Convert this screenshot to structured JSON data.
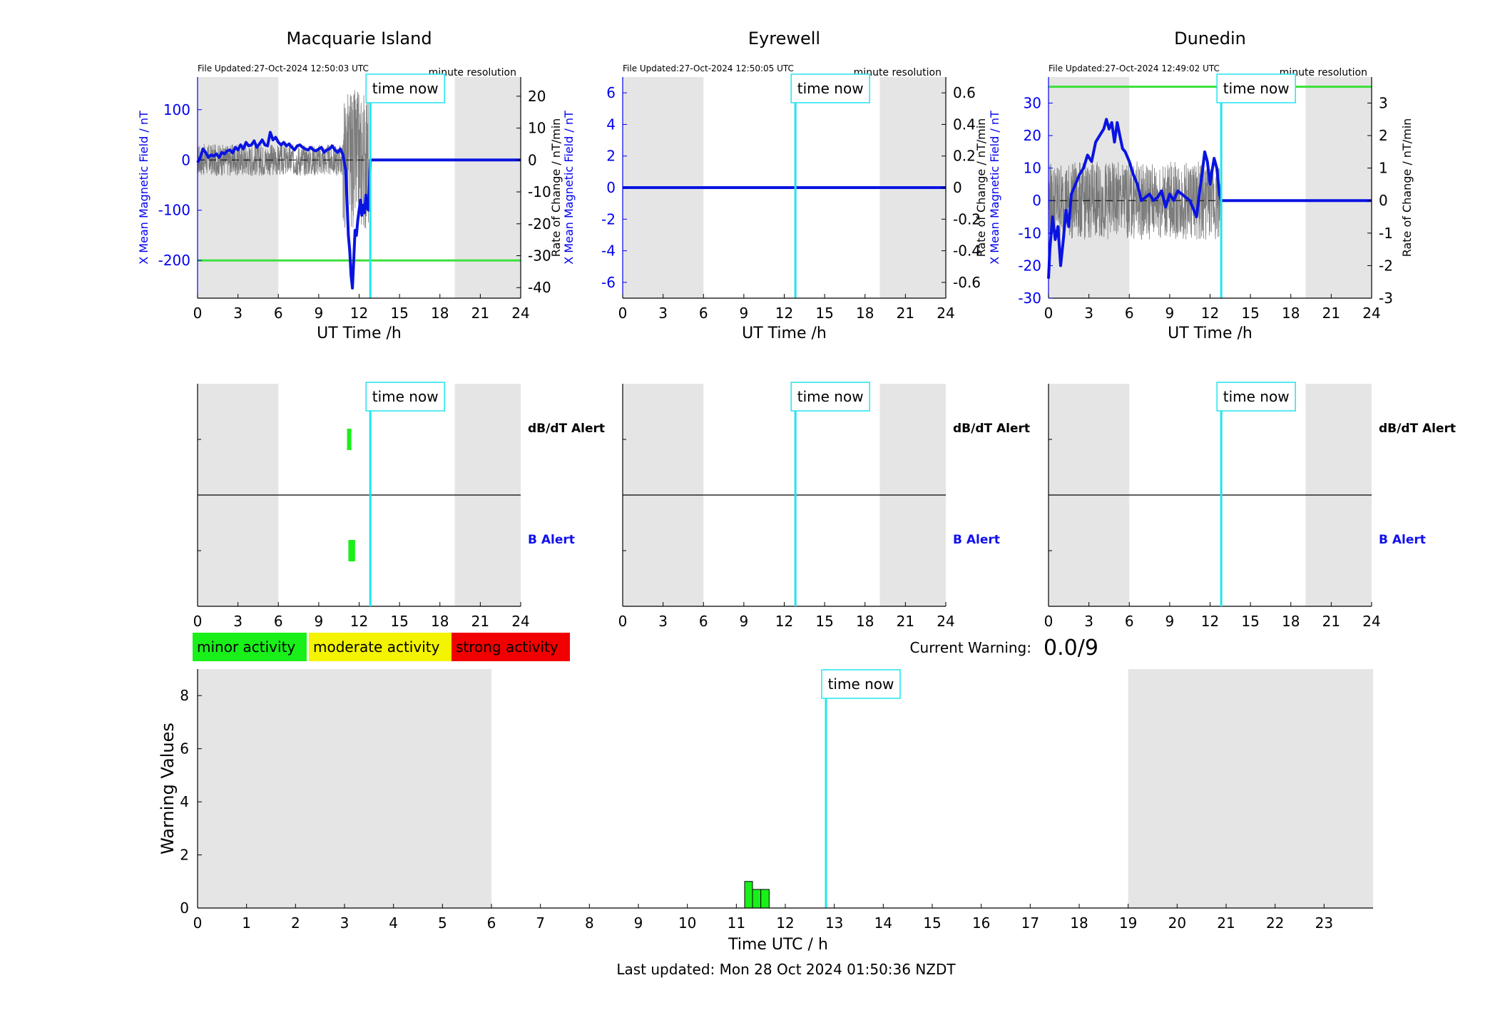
{
  "colors": {
    "shade": "#e5e5e5",
    "field": "#0a14e0",
    "rate": "#666666",
    "now": "#22e4f0",
    "threshold": "#3be03b",
    "minor": "#19f019",
    "moderate": "#f4f400",
    "strong": "#f20000",
    "axis_blue": "#0000ee"
  },
  "labels": {
    "time_now": "time now",
    "resolution": "minute resolution",
    "xlabel_station": "UT Time /h",
    "ylabel_field": "X Mean Magnetic Field / nT",
    "ylabel_rate": "Rate of Change / nT/min",
    "dbdt_alert": "dB/dT Alert",
    "b_alert": "B Alert",
    "current_warning_label": "Current Warning:",
    "current_warning_value": "0.0/9",
    "warning_ylabel": "Warning Values",
    "warning_xlabel": "Time UTC / h",
    "last_updated": "Last updated: Mon 28 Oct 2024 01:50:36 NZDT"
  },
  "legend": [
    {
      "label": "minor activity",
      "color": "#19f019"
    },
    {
      "label": "moderate activity",
      "color": "#f4f400"
    },
    {
      "label": "strong activity",
      "color": "#f20000"
    }
  ],
  "chart_data": [
    {
      "type": "line",
      "title": "Macquarie Island",
      "file_updated": "File Updated:27-Oct-2024 12:50:03 UTC",
      "xlabel": "UT Time /h",
      "ylabel": "X Mean Magnetic Field / nT",
      "y2label": "Rate of Change / nT/min",
      "xlim": [
        0,
        24
      ],
      "xticks": [
        0,
        3,
        6,
        9,
        12,
        15,
        18,
        21,
        24
      ],
      "ylim": [
        -275,
        165
      ],
      "yticks": [
        -200,
        -100,
        0,
        100
      ],
      "y2lim": [
        -43.3,
        26.0
      ],
      "y2ticks": [
        -40,
        -30,
        -20,
        -10,
        0,
        10,
        20
      ],
      "night_shading": [
        [
          0,
          6
        ],
        [
          19.1,
          24
        ]
      ],
      "time_now": 12.83,
      "threshold": -200,
      "field_series": {
        "name": "X Mean Magnetic Field",
        "x": [
          0,
          0.2,
          0.4,
          0.6,
          0.8,
          1.0,
          1.2,
          1.4,
          1.6,
          1.8,
          2.0,
          2.2,
          2.4,
          2.6,
          2.8,
          3.0,
          3.2,
          3.4,
          3.6,
          3.8,
          4.0,
          4.2,
          4.4,
          4.6,
          4.8,
          5.0,
          5.2,
          5.4,
          5.6,
          5.8,
          6.0,
          6.2,
          6.4,
          6.6,
          6.8,
          7.0,
          7.2,
          7.4,
          7.6,
          7.8,
          8.0,
          8.2,
          8.4,
          8.6,
          8.8,
          9.0,
          9.2,
          9.4,
          9.6,
          9.8,
          10.0,
          10.2,
          10.4,
          10.6,
          10.8,
          11.0,
          11.1,
          11.2,
          11.3,
          11.4,
          11.5,
          11.6,
          11.7,
          11.8,
          11.9,
          12.0,
          12.1,
          12.2,
          12.3,
          12.4,
          12.5,
          12.6,
          12.7,
          12.83,
          13,
          14,
          15,
          16,
          17,
          18,
          19,
          20,
          21,
          22,
          23,
          24
        ],
        "values": [
          -5,
          5,
          22,
          15,
          5,
          10,
          8,
          12,
          5,
          15,
          12,
          18,
          20,
          14,
          25,
          20,
          30,
          22,
          35,
          28,
          30,
          38,
          25,
          32,
          40,
          30,
          28,
          55,
          40,
          45,
          35,
          30,
          35,
          28,
          32,
          25,
          20,
          28,
          30,
          25,
          22,
          20,
          25,
          20,
          18,
          22,
          25,
          15,
          20,
          22,
          28,
          20,
          15,
          22,
          10,
          -20,
          -80,
          -150,
          -180,
          -230,
          -255,
          -200,
          -140,
          -150,
          -120,
          -100,
          -80,
          -110,
          -90,
          -105,
          -70,
          -95,
          -100,
          0,
          0,
          0,
          0,
          0,
          0,
          0,
          0,
          0,
          0,
          0,
          0,
          0
        ]
      },
      "rate_series": {
        "name": "Rate of Change",
        "x_start": 0,
        "x_end": 12.7,
        "amplitude": 5,
        "spike_start": 10.8,
        "spike_amplitude": 22
      }
    },
    {
      "type": "line",
      "title": "Eyrewell",
      "file_updated": "File Updated:27-Oct-2024 12:50:05 UTC",
      "xlabel": "UT Time /h",
      "ylabel": "X Mean Magnetic Field / nT",
      "y2label": "Rate of Change / nT/min",
      "xlim": [
        0,
        24
      ],
      "xticks": [
        0,
        3,
        6,
        9,
        12,
        15,
        18,
        21,
        24
      ],
      "ylim": [
        -7,
        7
      ],
      "yticks": [
        -6,
        -4,
        -2,
        0,
        2,
        4,
        6
      ],
      "y2lim": [
        -0.7,
        0.7
      ],
      "y2ticks": [
        -0.6,
        -0.4,
        -0.2,
        0,
        0.2,
        0.4,
        0.6
      ],
      "night_shading": [
        [
          0,
          6
        ],
        [
          19.1,
          24
        ]
      ],
      "time_now": 12.83,
      "field_series": {
        "name": "X Mean Magnetic Field",
        "x": [
          0,
          24
        ],
        "values": [
          0,
          0
        ]
      }
    },
    {
      "type": "line",
      "title": "Dunedin",
      "file_updated": "File Updated:27-Oct-2024 12:49:02 UTC",
      "xlabel": "UT Time /h",
      "ylabel": "X Mean Magnetic Field / nT",
      "y2label": "Rate of Change / nT/min",
      "xlim": [
        0,
        24
      ],
      "xticks": [
        0,
        3,
        6,
        9,
        12,
        15,
        18,
        21,
        24
      ],
      "ylim": [
        -30,
        38
      ],
      "yticks": [
        -30,
        -20,
        -10,
        0,
        10,
        20,
        30
      ],
      "y2lim": [
        -3,
        3.8
      ],
      "y2ticks": [
        -3,
        -2,
        -1,
        0,
        1,
        2,
        3
      ],
      "night_shading": [
        [
          0,
          6
        ],
        [
          19.1,
          24
        ]
      ],
      "time_now": 12.83,
      "threshold": 35,
      "field_series": {
        "name": "X Mean Magnetic Field",
        "x": [
          0,
          0.1,
          0.3,
          0.5,
          0.7,
          0.9,
          1.1,
          1.3,
          1.5,
          1.7,
          2.0,
          2.3,
          2.6,
          2.9,
          3.2,
          3.5,
          3.8,
          4.1,
          4.3,
          4.5,
          4.7,
          4.9,
          5.1,
          5.3,
          5.5,
          5.7,
          6.0,
          6.3,
          6.6,
          6.9,
          7.2,
          7.5,
          7.8,
          8.1,
          8.4,
          8.7,
          9.0,
          9.3,
          9.6,
          9.9,
          10.2,
          10.5,
          10.8,
          11.0,
          11.2,
          11.4,
          11.6,
          11.8,
          12.0,
          12.1,
          12.3,
          12.5,
          12.7,
          12.83,
          13,
          15,
          18,
          21,
          24
        ],
        "values": [
          -24,
          -15,
          -5,
          -12,
          -8,
          -20,
          -12,
          -3,
          -8,
          2,
          5,
          8,
          10,
          14,
          12,
          18,
          20,
          22,
          25,
          22,
          24,
          18,
          24,
          20,
          16,
          15,
          12,
          8,
          5,
          0,
          1,
          2,
          0,
          1,
          3,
          -2,
          2,
          0,
          3,
          2,
          1,
          0,
          -3,
          -5,
          2,
          8,
          15,
          12,
          5,
          8,
          13,
          10,
          2,
          0,
          0,
          0,
          0,
          0,
          0
        ]
      },
      "rate_series": {
        "name": "Rate of Change",
        "x_start": 0,
        "x_end": 12.8,
        "amplitude": 1.2
      }
    },
    {
      "type": "bar",
      "title": "",
      "ylabel": "",
      "rows": [
        "dB/dT Alert",
        "B Alert"
      ],
      "xlim": [
        0,
        24
      ],
      "xticks": [
        0,
        3,
        6,
        9,
        12,
        15,
        18,
        21,
        24
      ],
      "night_shading": [
        [
          0,
          6
        ],
        [
          19.1,
          24
        ]
      ],
      "time_now": 12.83,
      "alerts": [
        {
          "row": "dB/dT Alert",
          "start": 11.1,
          "end": 11.4,
          "level": "minor"
        },
        {
          "row": "B Alert",
          "start": 11.2,
          "end": 11.7,
          "level": "minor"
        }
      ]
    },
    {
      "type": "bar",
      "title": "",
      "rows": [
        "dB/dT Alert",
        "B Alert"
      ],
      "xlim": [
        0,
        24
      ],
      "xticks": [
        0,
        3,
        6,
        9,
        12,
        15,
        18,
        21,
        24
      ],
      "night_shading": [
        [
          0,
          6
        ],
        [
          19.1,
          24
        ]
      ],
      "time_now": 12.83,
      "alerts": []
    },
    {
      "type": "bar",
      "title": "",
      "rows": [
        "dB/dT Alert",
        "B Alert"
      ],
      "xlim": [
        0,
        24
      ],
      "xticks": [
        0,
        3,
        6,
        9,
        12,
        15,
        18,
        21,
        24
      ],
      "night_shading": [
        [
          0,
          6
        ],
        [
          19.1,
          24
        ]
      ],
      "time_now": 12.83,
      "alerts": []
    },
    {
      "type": "bar",
      "title": "",
      "xlabel": "Time UTC / h",
      "ylabel": "Warning Values",
      "xlim": [
        0,
        24
      ],
      "xticks": [
        0,
        1,
        2,
        3,
        4,
        5,
        6,
        7,
        8,
        9,
        10,
        11,
        12,
        13,
        14,
        15,
        16,
        17,
        18,
        19,
        20,
        21,
        22,
        23
      ],
      "ylim": [
        0,
        9
      ],
      "yticks": [
        0,
        2,
        4,
        6,
        8
      ],
      "night_shading": [
        [
          0,
          6
        ],
        [
          19,
          24
        ]
      ],
      "time_now": 12.83,
      "bars": [
        {
          "start": 11.17,
          "end": 11.33,
          "value": 1.0
        },
        {
          "start": 11.33,
          "end": 11.5,
          "value": 0.7
        },
        {
          "start": 11.5,
          "end": 11.67,
          "value": 0.7
        }
      ]
    }
  ]
}
